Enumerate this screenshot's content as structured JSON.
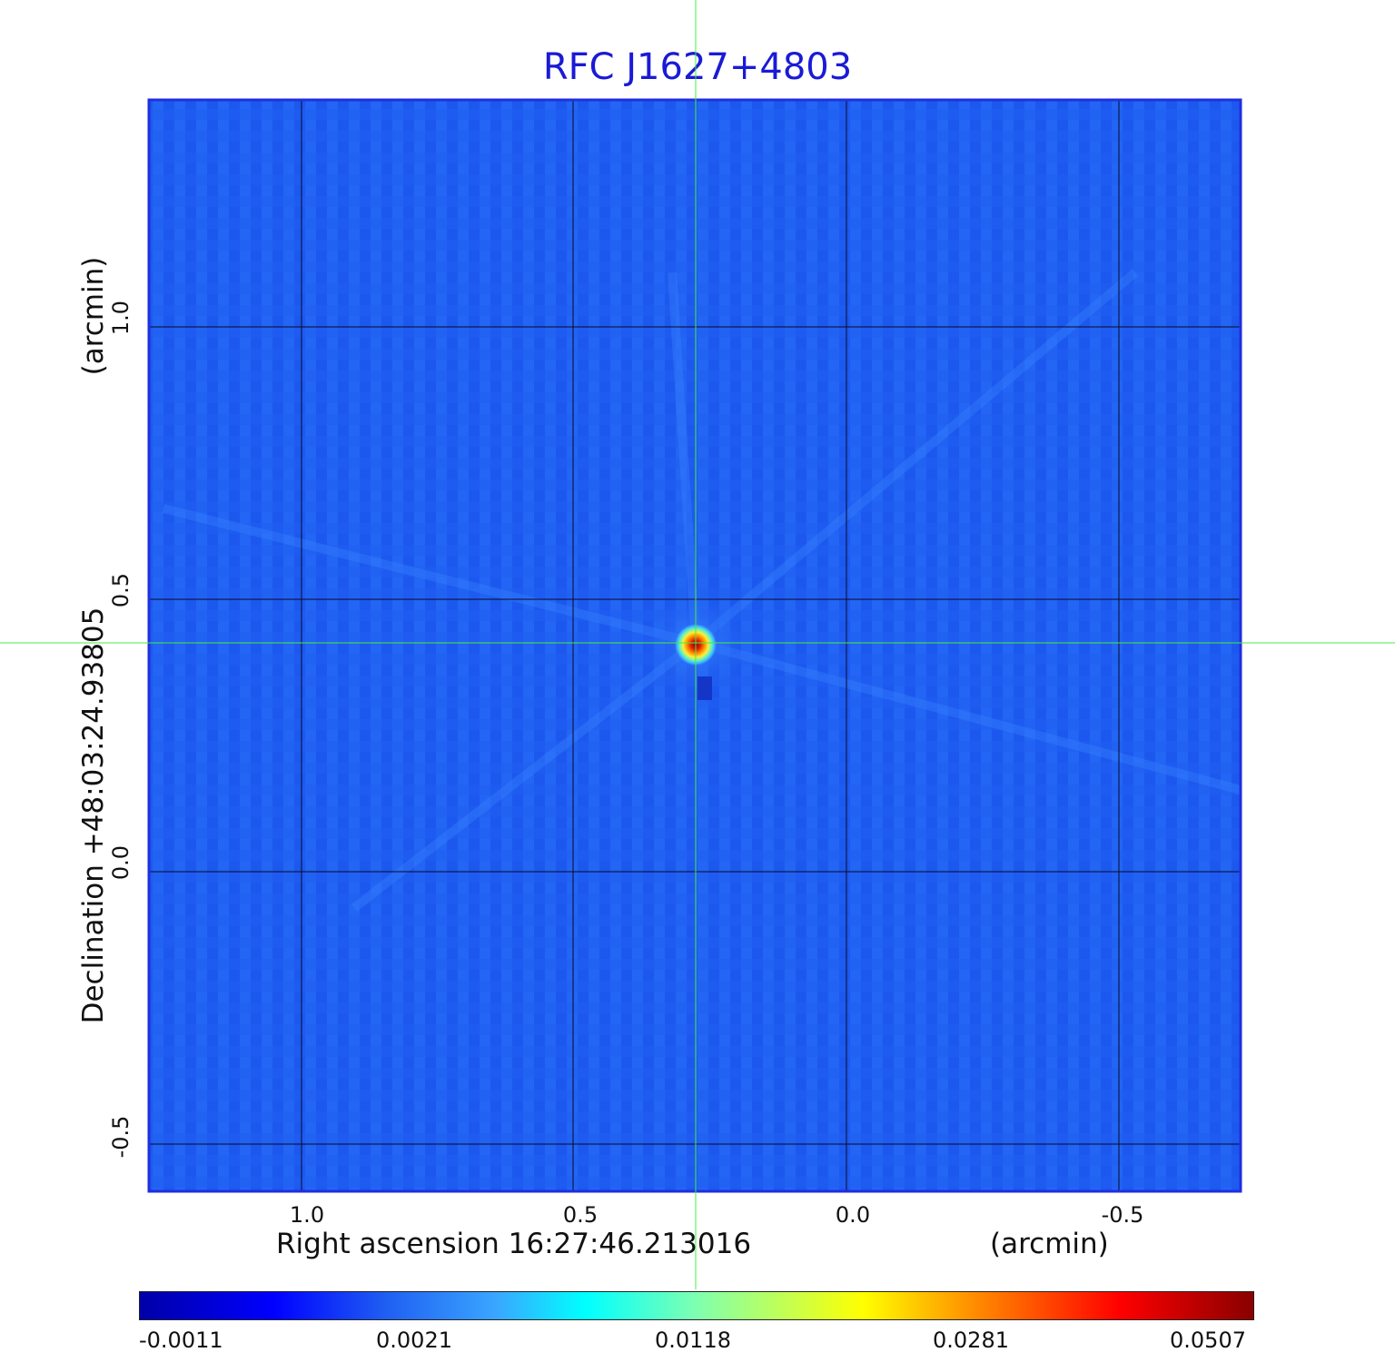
{
  "figure": {
    "title": "RFC J1627+4803",
    "x_axis_label": "Right ascension  16:27:46.213016",
    "x_axis_unit": "(arcmin)",
    "y_axis_label": "Declination  +48:03:24.93805",
    "y_axis_unit": "(arcmin)",
    "x_ticks": [
      "1.0",
      "0.5",
      "0.0",
      "-0.5"
    ],
    "y_ticks": [
      "1.0",
      "0.5",
      "0.0",
      "-0.5"
    ],
    "colormap": "jet",
    "colorbar_ticks": [
      "-0.0011",
      "0.0021",
      "0.0118",
      "0.0281",
      "0.0507"
    ],
    "colors": {
      "title": "#1a1ad6",
      "crosshair": "#44ee44",
      "frame": "#1f2fe0",
      "background_field": "#1f5ef2",
      "grid": "#0a0a2a"
    },
    "crosshair_center_arcmin": {
      "ra_offset": 0.28,
      "dec_offset": 0.42
    },
    "source_peak_value": 0.0507
  }
}
